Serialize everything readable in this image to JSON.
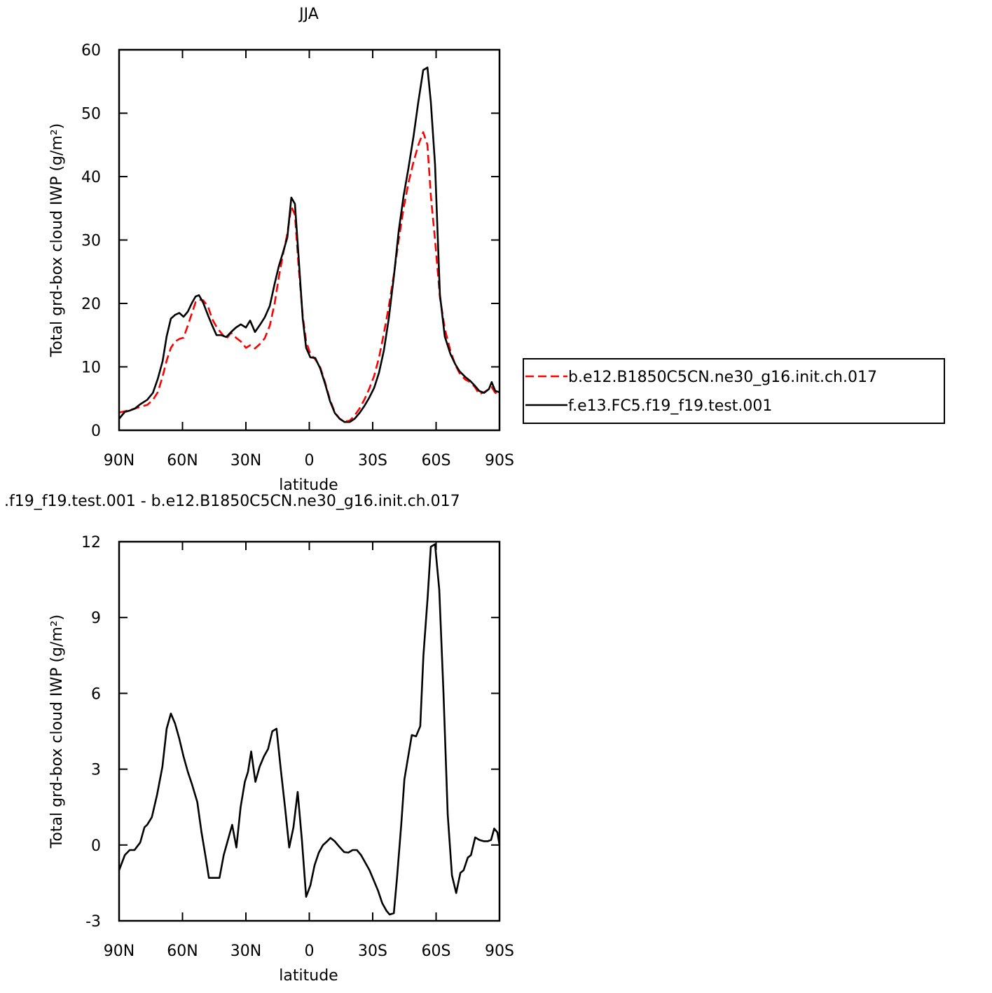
{
  "chart_data": [
    {
      "type": "line",
      "title": "JJA",
      "xlabel": "latitude",
      "ylabel": "Total grd-box cloud IWP (g/m²)",
      "x": [
        90,
        87.3,
        85,
        82.7,
        80,
        76.7,
        74,
        71.7,
        69.4,
        67.5,
        65.5,
        63.5,
        61.5,
        59.5,
        57.5,
        55.5,
        53.8,
        52.2,
        50.2,
        47.9,
        45.9,
        43.9,
        41.6,
        39.3,
        37,
        34.7,
        32.4,
        30,
        28,
        25.7,
        23.4,
        21.1,
        18.7,
        16.4,
        14.4,
        12.4,
        10.4,
        8.5,
        6.8,
        5.1,
        3.1,
        1.5,
        -0.5,
        -2.8,
        -5.1,
        -7.5,
        -9.8,
        -12.1,
        -14.4,
        -16.7,
        -19.1,
        -21.4,
        -23.7,
        -26,
        -28.3,
        -30.7,
        -33,
        -35.3,
        -37.6,
        -40,
        -42.3,
        -44.6,
        -46.9,
        -49.3,
        -51.6,
        -53.9,
        -55.9,
        -57.5,
        -59.5,
        -61.8,
        -64.1,
        -66.8,
        -69.1,
        -71.1,
        -73.8,
        -76.1,
        -78.4,
        -80.4,
        -82.7,
        -85,
        -86.3,
        -88,
        -90
      ],
      "series": [
        {
          "name": "b.e12.B1850C5CN.ne30_g16.init.ch.017",
          "color": "#ff0000",
          "dash": true,
          "values": [
            2.8,
            3.0,
            3.2,
            3.4,
            3.7,
            4,
            4.8,
            6,
            8.5,
            11,
            13,
            14,
            14.4,
            14.6,
            16.5,
            18.5,
            20.2,
            20.6,
            20.5,
            19.5,
            17.5,
            16.3,
            15.3,
            14.4,
            15.4,
            14.6,
            14,
            13,
            13.4,
            12.9,
            13.6,
            14.5,
            16.5,
            20,
            24.2,
            27.8,
            31,
            35.3,
            34,
            26,
            18,
            14,
            12,
            11.2,
            10,
            7.5,
            4.8,
            2.8,
            1.8,
            1.4,
            1.5,
            2.3,
            3.4,
            4.8,
            6.5,
            8.6,
            11.5,
            15.3,
            19.5,
            24.5,
            30,
            35,
            39,
            42.3,
            45,
            47,
            45,
            37,
            30,
            21,
            16,
            12.5,
            10.3,
            9,
            8,
            7.6,
            6.8,
            5.7,
            6,
            6.5,
            6.8,
            5.9,
            5.6
          ]
        },
        {
          "name": "f.e13.FC5.f19_f19.test.001",
          "color": "#000000",
          "dash": false,
          "values": [
            1.8,
            2.9,
            3.1,
            3.4,
            4.1,
            4.8,
            5.9,
            8.1,
            10.9,
            14.8,
            17.6,
            18.2,
            18.5,
            17.9,
            18.7,
            20.1,
            21.1,
            21.3,
            20.1,
            18.1,
            16.5,
            15,
            15,
            14.7,
            15.5,
            16.2,
            16.7,
            16.2,
            17.3,
            15.5,
            16.6,
            17.8,
            19.6,
            23.1,
            25.9,
            28.1,
            30.4,
            36.7,
            35.7,
            27.5,
            17.6,
            13.0,
            11.5,
            11.4,
            9.8,
            7.3,
            4.6,
            2.7,
            1.8,
            1.3,
            1.3,
            1.8,
            2.7,
            3.8,
            5.1,
            6.7,
            9.1,
            12.6,
            17.6,
            24.2,
            31.4,
            36.9,
            41.3,
            46.3,
            51.8,
            56.8,
            57.2,
            51.8,
            41.9,
            21.4,
            14.8,
            12,
            10.4,
            9.3,
            8.4,
            7.8,
            7,
            6.2,
            5.9,
            6.5,
            7.6,
            6.2,
            6.0
          ]
        }
      ],
      "xlim": [
        90,
        -90
      ],
      "xticks": [
        {
          "value": 90,
          "label": "90N"
        },
        {
          "value": 60,
          "label": "60N"
        },
        {
          "value": 30,
          "label": "30N"
        },
        0,
        {
          "value": -30,
          "label": "30S"
        },
        {
          "value": -60,
          "label": "60S"
        },
        {
          "value": -90,
          "label": "90S"
        }
      ],
      "ylim": [
        0,
        60
      ],
      "yticks": [
        0,
        10,
        20,
        30,
        40,
        50,
        60
      ],
      "legend": "right"
    },
    {
      "type": "line",
      "title": ".f19_f19.test.001 - b.e12.B1850C5CN.ne30_g16.init.ch.017",
      "xlabel": "latitude",
      "ylabel": "Total grd-box cloud IWP (g/m²)",
      "x": [
        90,
        87.3,
        85,
        82.7,
        80,
        78,
        76.7,
        74.5,
        72,
        69.5,
        67.5,
        65.5,
        63.5,
        61.5,
        59.5,
        57.5,
        55.5,
        53,
        51,
        49,
        47.5,
        45,
        42.5,
        40.5,
        38.5,
        36.5,
        34.5,
        32.5,
        30.5,
        29,
        27.5,
        25.5,
        23.5,
        21.5,
        19.5,
        17.5,
        15.5,
        13.5,
        11.5,
        9.5,
        7.5,
        5.5,
        3.5,
        1.5,
        -0.5,
        -2.5,
        -4.5,
        -6.5,
        -8.5,
        -10,
        -12,
        -14,
        -16.5,
        -18.5,
        -20.5,
        -22.5,
        -24.5,
        -26.5,
        -28.5,
        -30.5,
        -32.5,
        -34.5,
        -36.5,
        -38,
        -40,
        -41.5,
        -43.5,
        -45,
        -47,
        -48.5,
        -50.5,
        -52.5,
        -54,
        -56,
        -57.5,
        -59.5,
        -61.5,
        -63.5,
        -65.5,
        -67.5,
        -69.5,
        -71.5,
        -73,
        -75,
        -76.5,
        -78.5,
        -80.5,
        -82.5,
        -84.5,
        -86,
        -87.5,
        -89,
        -90
      ],
      "series": [
        {
          "color": "#000000",
          "dash": false,
          "values": [
            -1,
            -0.4,
            -0.2,
            -0.2,
            0.1,
            0.7,
            0.8,
            1.1,
            2,
            3.1,
            4.6,
            5.2,
            4.8,
            4.2,
            3.5,
            2.9,
            2.4,
            1.7,
            0.5,
            -0.5,
            -1.3,
            -1.3,
            -1.3,
            -0.4,
            0.2,
            0.8,
            -0.1,
            1.5,
            2.5,
            2.9,
            3.7,
            2.5,
            3.1,
            3.5,
            3.8,
            4.5,
            4.6,
            3,
            1.5,
            -0.1,
            0.7,
            2.1,
            0.2,
            -2.05,
            -1.6,
            -0.8,
            -0.3,
            0,
            0.15,
            0.28,
            0.15,
            -0.05,
            -0.28,
            -0.3,
            -0.2,
            -0.2,
            -0.4,
            -0.7,
            -1,
            -1.4,
            -1.8,
            -2.3,
            -2.6,
            -2.75,
            -2.7,
            -1.3,
            0.8,
            2.6,
            3.6,
            4.35,
            4.3,
            4.7,
            7.5,
            9.8,
            11.8,
            11.9,
            10.1,
            6,
            1.2,
            -1.2,
            -1.9,
            -1.1,
            -1,
            -0.5,
            -0.4,
            0.3,
            0.2,
            0.15,
            0.15,
            0.2,
            0.65,
            0.5,
            0
          ]
        }
      ],
      "xlim": [
        90,
        -90
      ],
      "xticks": [
        {
          "value": 90,
          "label": "90N"
        },
        {
          "value": 60,
          "label": "60N"
        },
        {
          "value": 30,
          "label": "30N"
        },
        0,
        {
          "value": -30,
          "label": "30S"
        },
        {
          "value": -60,
          "label": "60S"
        },
        {
          "value": -90,
          "label": "90S"
        }
      ],
      "ylim": [
        -3,
        12
      ],
      "yticks": [
        -3,
        0,
        3,
        6,
        9,
        12
      ]
    }
  ]
}
